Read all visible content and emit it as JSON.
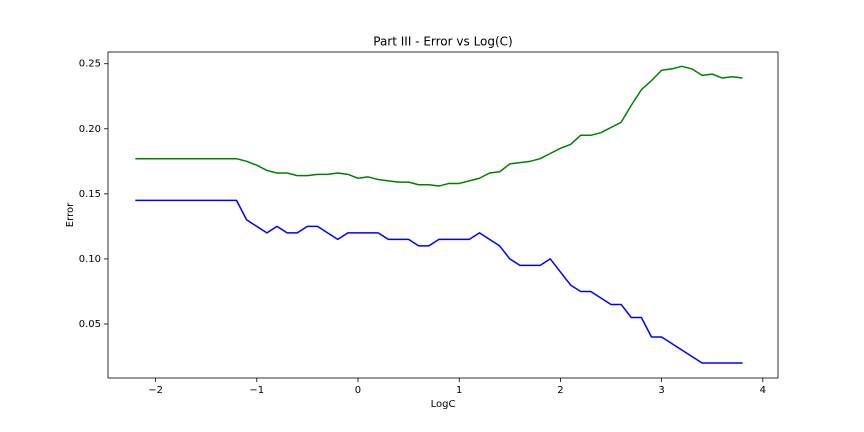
{
  "chart_data": {
    "type": "line",
    "title": "Part III - Error vs Log(C)",
    "x_label": "LogC",
    "y_label": "Error",
    "x": [
      -2.2,
      -2.1,
      -2.0,
      -1.9,
      -1.8,
      -1.7,
      -1.6,
      -1.5,
      -1.4,
      -1.3,
      -1.2,
      -1.1,
      -1.0,
      -0.9,
      -0.8,
      -0.7,
      -0.6,
      -0.5,
      -0.4,
      -0.3,
      -0.2,
      -0.1,
      0.0,
      0.1,
      0.2,
      0.3,
      0.4,
      0.5,
      0.6,
      0.7,
      0.8,
      0.9,
      1.0,
      1.1,
      1.2,
      1.3,
      1.4,
      1.5,
      1.6,
      1.7,
      1.8,
      1.9,
      2.0,
      2.1,
      2.2,
      2.3,
      2.4,
      2.5,
      2.6,
      2.7,
      2.8,
      2.9,
      3.0,
      3.1,
      3.2,
      3.3,
      3.4,
      3.5,
      3.6,
      3.7,
      3.8
    ],
    "series": [
      {
        "color": "#008000",
        "values": [
          0.177,
          0.177,
          0.177,
          0.177,
          0.177,
          0.177,
          0.177,
          0.177,
          0.177,
          0.177,
          0.177,
          0.175,
          0.172,
          0.168,
          0.166,
          0.166,
          0.164,
          0.164,
          0.165,
          0.165,
          0.166,
          0.165,
          0.162,
          0.163,
          0.161,
          0.16,
          0.159,
          0.159,
          0.157,
          0.157,
          0.156,
          0.158,
          0.158,
          0.16,
          0.162,
          0.166,
          0.167,
          0.173,
          0.174,
          0.175,
          0.177,
          0.181,
          0.185,
          0.188,
          0.195,
          0.195,
          0.197,
          0.201,
          0.205,
          0.218,
          0.23,
          0.237,
          0.245,
          0.246,
          0.248,
          0.246,
          0.241,
          0.242,
          0.239,
          0.24,
          0.239
        ]
      },
      {
        "color": "#0000ff",
        "values": [
          0.145,
          0.145,
          0.145,
          0.145,
          0.145,
          0.145,
          0.145,
          0.145,
          0.145,
          0.145,
          0.145,
          0.13,
          0.125,
          0.12,
          0.125,
          0.12,
          0.12,
          0.125,
          0.125,
          0.12,
          0.115,
          0.12,
          0.12,
          0.12,
          0.12,
          0.115,
          0.115,
          0.115,
          0.11,
          0.11,
          0.115,
          0.115,
          0.115,
          0.115,
          0.12,
          0.115,
          0.11,
          0.1,
          0.095,
          0.095,
          0.095,
          0.1,
          0.09,
          0.08,
          0.075,
          0.075,
          0.07,
          0.065,
          0.065,
          0.055,
          0.055,
          0.04,
          0.04,
          0.035,
          0.03,
          0.025,
          0.02,
          0.02,
          0.02,
          0.02,
          0.02
        ]
      }
    ],
    "xlim": [
      -2.47,
      4.15
    ],
    "ylim": [
      0.0085,
      0.259
    ],
    "xticks": [
      {
        "value": -2,
        "label": "−2"
      },
      {
        "value": -1,
        "label": "−1"
      },
      0,
      1,
      2,
      3,
      4
    ],
    "yticks": [
      0.05,
      {
        "value": 0.1,
        "label": "0.10"
      },
      0.15,
      {
        "value": 0.2,
        "label": "0.20"
      },
      0.25
    ],
    "grid": false
  }
}
